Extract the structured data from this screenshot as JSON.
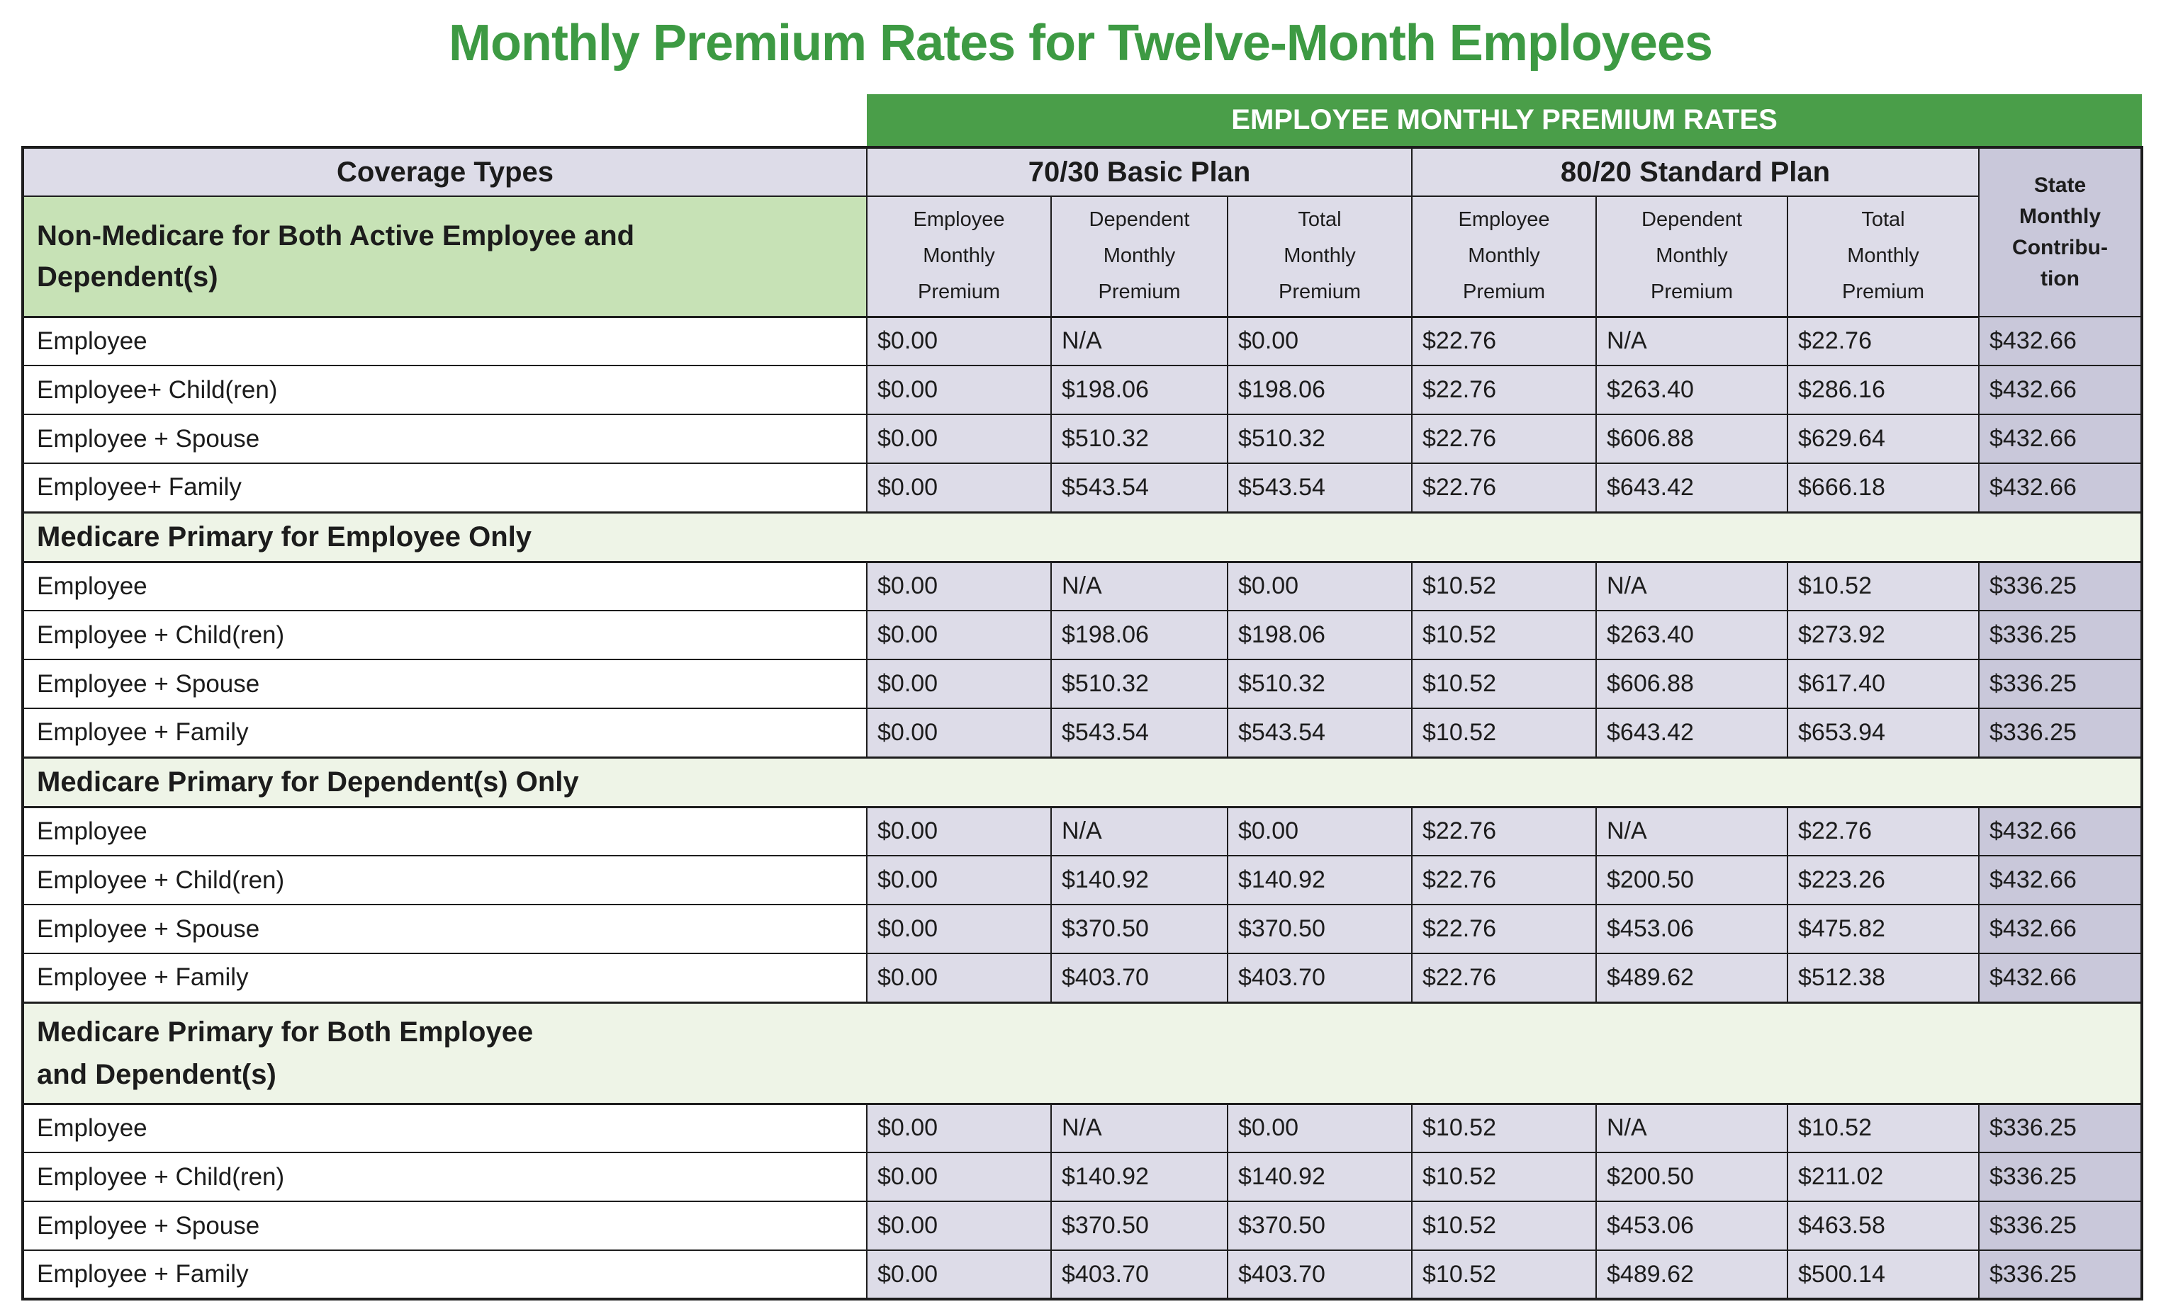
{
  "title": "Monthly Premium Rates for Twelve-Month Employees",
  "banner": "EMPLOYEE MONTHLY PREMIUM RATES",
  "headers": {
    "coverage": "Coverage Types",
    "plan1": "70/30 Basic Plan",
    "plan2": "80/20 Standard Plan",
    "state_lines": [
      "State",
      "Monthly",
      "Contribu-",
      "tion"
    ],
    "sub_lines": [
      [
        "Employee",
        "Monthly",
        "Premium"
      ],
      [
        "Dependent",
        "Monthly",
        "Premium"
      ],
      [
        "Total",
        "Monthly",
        "Premium"
      ],
      [
        "Employee",
        "Monthly",
        "Premium"
      ],
      [
        "Dependent",
        "Monthly",
        "Premium"
      ],
      [
        "Total",
        "Monthly",
        "Premium"
      ]
    ]
  },
  "sections": [
    {
      "label_lines": [
        "Non-Medicare for Both Active Employee and",
        "Dependent(s)"
      ],
      "rows": [
        {
          "coverage": "Employee",
          "values": [
            "$0.00",
            "N/A",
            "$0.00",
            "$22.76",
            "N/A",
            "$22.76",
            "$432.66"
          ]
        },
        {
          "coverage": "Employee+ Child(ren)",
          "values": [
            "$0.00",
            "$198.06",
            "$198.06",
            "$22.76",
            "$263.40",
            "$286.16",
            "$432.66"
          ]
        },
        {
          "coverage": "Employee + Spouse",
          "values": [
            "$0.00",
            "$510.32",
            "$510.32",
            "$22.76",
            "$606.88",
            "$629.64",
            "$432.66"
          ]
        },
        {
          "coverage": "Employee+ Family",
          "values": [
            "$0.00",
            "$543.54",
            "$543.54",
            "$22.76",
            "$643.42",
            "$666.18",
            "$432.66"
          ]
        }
      ]
    },
    {
      "label_lines": [
        "Medicare Primary for Employee Only"
      ],
      "rows": [
        {
          "coverage": "Employee",
          "values": [
            "$0.00",
            "N/A",
            "$0.00",
            "$10.52",
            "N/A",
            "$10.52",
            "$336.25"
          ]
        },
        {
          "coverage": "Employee + Child(ren)",
          "values": [
            "$0.00",
            "$198.06",
            "$198.06",
            "$10.52",
            "$263.40",
            "$273.92",
            "$336.25"
          ]
        },
        {
          "coverage": "Employee + Spouse",
          "values": [
            "$0.00",
            "$510.32",
            "$510.32",
            "$10.52",
            "$606.88",
            "$617.40",
            "$336.25"
          ]
        },
        {
          "coverage": "Employee + Family",
          "values": [
            "$0.00",
            "$543.54",
            "$543.54",
            "$10.52",
            "$643.42",
            "$653.94",
            "$336.25"
          ]
        }
      ]
    },
    {
      "label_lines": [
        "Medicare Primary for Dependent(s) Only"
      ],
      "rows": [
        {
          "coverage": "Employee",
          "values": [
            "$0.00",
            "N/A",
            "$0.00",
            "$22.76",
            "N/A",
            "$22.76",
            "$432.66"
          ]
        },
        {
          "coverage": "Employee + Child(ren)",
          "values": [
            "$0.00",
            "$140.92",
            "$140.92",
            "$22.76",
            "$200.50",
            "$223.26",
            "$432.66"
          ]
        },
        {
          "coverage": "Employee + Spouse",
          "values": [
            "$0.00",
            "$370.50",
            "$370.50",
            "$22.76",
            "$453.06",
            "$475.82",
            "$432.66"
          ]
        },
        {
          "coverage": "Employee + Family",
          "values": [
            "$0.00",
            "$403.70",
            "$403.70",
            "$22.76",
            "$489.62",
            "$512.38",
            "$432.66"
          ]
        }
      ]
    },
    {
      "label_lines": [
        "Medicare Primary for Both Employee",
        "and Dependent(s)"
      ],
      "rows": [
        {
          "coverage": "Employee",
          "values": [
            "$0.00",
            "N/A",
            "$0.00",
            "$10.52",
            "N/A",
            "$10.52",
            "$336.25"
          ]
        },
        {
          "coverage": "Employee + Child(ren)",
          "values": [
            "$0.00",
            "$140.92",
            "$140.92",
            "$10.52",
            "$200.50",
            "$211.02",
            "$336.25"
          ]
        },
        {
          "coverage": "Employee + Spouse",
          "values": [
            "$0.00",
            "$370.50",
            "$370.50",
            "$10.52",
            "$453.06",
            "$463.58",
            "$336.25"
          ]
        },
        {
          "coverage": "Employee + Family",
          "values": [
            "$0.00",
            "$403.70",
            "$403.70",
            "$10.52",
            "$489.62",
            "$500.14",
            "$336.25"
          ]
        }
      ]
    }
  ],
  "colors": {
    "title_green": "#3d9a43",
    "banner_green": "#4a9e49",
    "banner_text": "#ffffff",
    "lavender": "#dddce8",
    "lavender_dark": "#c9c8da",
    "section_green": "#c7e2b6",
    "band_green": "#eef4e7",
    "border": "#1d1d1d",
    "text": "#1c1c1c"
  }
}
